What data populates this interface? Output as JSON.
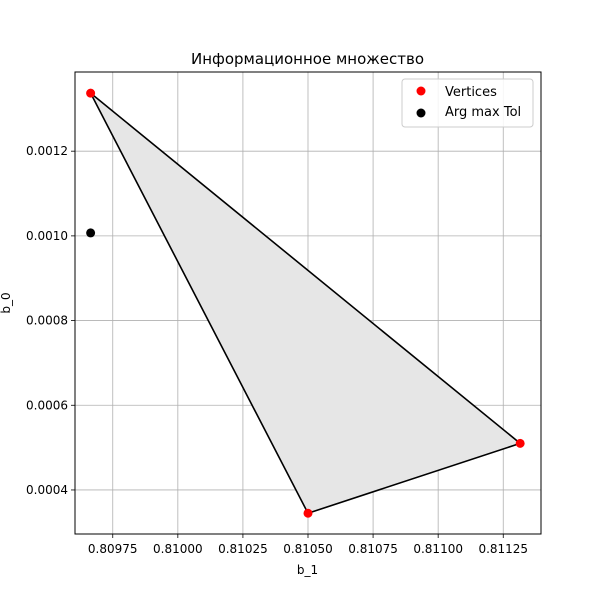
{
  "chart_data": {
    "type": "scatter",
    "title": "Информационное множество",
    "xlabel": "b_1",
    "ylabel": "b_0",
    "xlim": [
      0.809605,
      0.811395
    ],
    "ylim": [
      0.000296,
      0.001387
    ],
    "grid": true,
    "legend_position": "top-right",
    "x_ticks": [
      0.80975,
      0.81,
      0.81025,
      0.8105,
      0.81075,
      0.811,
      0.81125
    ],
    "x_tick_labels": [
      "0.80975",
      "0.81000",
      "0.81025",
      "0.81050",
      "0.81075",
      "0.81100",
      "0.81125"
    ],
    "y_ticks": [
      0.0004,
      0.0006,
      0.0008,
      0.001,
      0.0012
    ],
    "y_tick_labels": [
      "0.0004",
      "0.0006",
      "0.0008",
      "0.0010",
      "0.0012"
    ],
    "polygon": {
      "fill_color": "#e6e6e6",
      "edge_color": "#000000",
      "x": [
        0.809665,
        0.8105,
        0.811315
      ],
      "y": [
        0.001337,
        0.000345,
        0.00051
      ]
    },
    "series": [
      {
        "name": "Vertices",
        "color": "#ff0000",
        "x": [
          0.809665,
          0.8105,
          0.811315
        ],
        "y": [
          0.001337,
          0.000345,
          0.00051
        ]
      },
      {
        "name": "Arg max Tol",
        "color": "#000000",
        "x": [
          0.809665
        ],
        "y": [
          0.001007
        ]
      }
    ]
  }
}
